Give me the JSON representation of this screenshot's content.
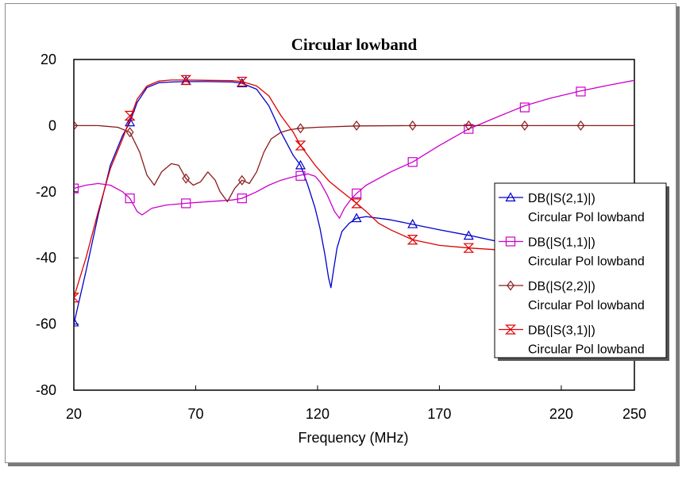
{
  "chart_data": {
    "type": "line",
    "title": "Circular lowband",
    "xlabel": "Frequency (MHz)",
    "ylabel": "",
    "xlim": [
      20,
      250
    ],
    "ylim": [
      -80,
      20
    ],
    "xticks": [
      20,
      70,
      120,
      170,
      220,
      250
    ],
    "yticks": [
      20,
      0,
      -20,
      -40,
      -60,
      -80
    ],
    "grid": false,
    "legend_position": "right",
    "series": [
      {
        "name": "DB(|S(2,1)|)",
        "subtitle": "Circular Pol lowband",
        "color": "#0000cc",
        "marker": "triangle-up",
        "x": [
          20,
          25,
          30,
          35,
          40,
          43,
          46,
          50,
          55,
          60,
          66,
          75,
          85,
          89,
          95,
          100,
          105,
          110,
          113,
          116,
          119,
          121,
          123,
          124.5,
          125.5,
          126.5,
          128,
          130,
          133,
          136,
          140,
          150,
          160,
          170,
          183,
          200,
          215
        ],
        "y": [
          -60,
          -44,
          -27,
          -12,
          -3,
          1,
          7,
          11.5,
          13,
          13.2,
          13.3,
          13.3,
          13.2,
          12.8,
          11,
          6,
          -2,
          -9,
          -12,
          -18,
          -25,
          -31,
          -39,
          -46,
          -49,
          -44,
          -37,
          -32,
          -29.5,
          -28,
          -27.5,
          -28.5,
          -30,
          -31.5,
          -33.3,
          -36,
          -37.5
        ],
        "markers_x": [
          20,
          43,
          66,
          89,
          113,
          136,
          159,
          182
        ],
        "markers_y": [
          -59.5,
          1,
          13.5,
          12.8,
          -12,
          -28,
          -29.8,
          -33.3
        ]
      },
      {
        "name": "DB(|S(1,1)|)",
        "subtitle": "Circular Pol lowband",
        "color": "#cc00cc",
        "marker": "square",
        "x": [
          20,
          25,
          30,
          35,
          40,
          43,
          46,
          48,
          52,
          58,
          66,
          75,
          85,
          89,
          95,
          100,
          105,
          110,
          113,
          116,
          119,
          121,
          124,
          127,
          129,
          131,
          134,
          136,
          140,
          150,
          159,
          170,
          182,
          195,
          205,
          215,
          228,
          240,
          250
        ],
        "y": [
          -19,
          -18,
          -17.5,
          -18,
          -20,
          -22,
          -26,
          -27,
          -25,
          -24,
          -23.5,
          -23,
          -22.5,
          -22,
          -20,
          -18,
          -16.5,
          -15.5,
          -15,
          -14.6,
          -15.3,
          -17,
          -21,
          -26,
          -28,
          -25,
          -22,
          -20.5,
          -18,
          -14,
          -11,
          -6,
          -1,
          3,
          6,
          8.2,
          10.5,
          12.3,
          13.7
        ],
        "markers_x": [
          20,
          43,
          66,
          89,
          113,
          136,
          159,
          182,
          205,
          228
        ],
        "markers_y": [
          -19,
          -22,
          -23.5,
          -22,
          -15.2,
          -20.5,
          -11,
          -1,
          5.5,
          10.3
        ]
      },
      {
        "name": "DB(|S(2,2)|)",
        "subtitle": "Circular Pol lowband",
        "color": "#8b1a1a",
        "marker": "diamond",
        "x": [
          20,
          30,
          38,
          43,
          47,
          50,
          53,
          56,
          60,
          63,
          66,
          69,
          72,
          75,
          78,
          80,
          83,
          86,
          89,
          92,
          95,
          98,
          101,
          105,
          109,
          113,
          120,
          136,
          159,
          182,
          205,
          228,
          250
        ],
        "y": [
          0,
          0,
          -0.5,
          -2,
          -8,
          -15,
          -18,
          -14,
          -11.5,
          -12,
          -16,
          -18,
          -17,
          -14,
          -16.5,
          -20,
          -23,
          -19,
          -16.5,
          -17.5,
          -14,
          -8,
          -4,
          -2,
          -1.2,
          -0.8,
          -0.5,
          -0.1,
          0,
          0,
          0,
          0,
          0
        ],
        "markers_x": [
          20,
          43,
          66,
          89,
          113,
          136,
          159,
          182,
          205,
          228
        ],
        "markers_y": [
          0,
          -2,
          -16,
          -16.5,
          -0.8,
          0,
          0,
          0,
          0,
          0
        ]
      },
      {
        "name": "DB(|S(3,1)|)",
        "subtitle": "Circular Pol lowband",
        "color": "#dd0000",
        "marker": "hourglass",
        "x": [
          20,
          25,
          30,
          35,
          40,
          43,
          46,
          50,
          55,
          60,
          66,
          75,
          85,
          89,
          95,
          100,
          105,
          110,
          113,
          116,
          119,
          122,
          125,
          130,
          136,
          140,
          145,
          150,
          159,
          170,
          182,
          195,
          205
        ],
        "y": [
          -52,
          -40,
          -26,
          -13,
          -4,
          2,
          8,
          12,
          13.5,
          13.8,
          13.8,
          13.7,
          13.6,
          13.3,
          12,
          9,
          3,
          -2,
          -6,
          -9,
          -12,
          -14.5,
          -17,
          -20,
          -23.5,
          -26,
          -29.5,
          -31.5,
          -34.5,
          -36.2,
          -37,
          -37.6,
          -38
        ],
        "markers_x": [
          20,
          43,
          66,
          89,
          113,
          136,
          159,
          182
        ],
        "markers_y": [
          -52,
          3,
          13.8,
          13.3,
          -6,
          -23.5,
          -34.5,
          -37
        ]
      }
    ]
  }
}
